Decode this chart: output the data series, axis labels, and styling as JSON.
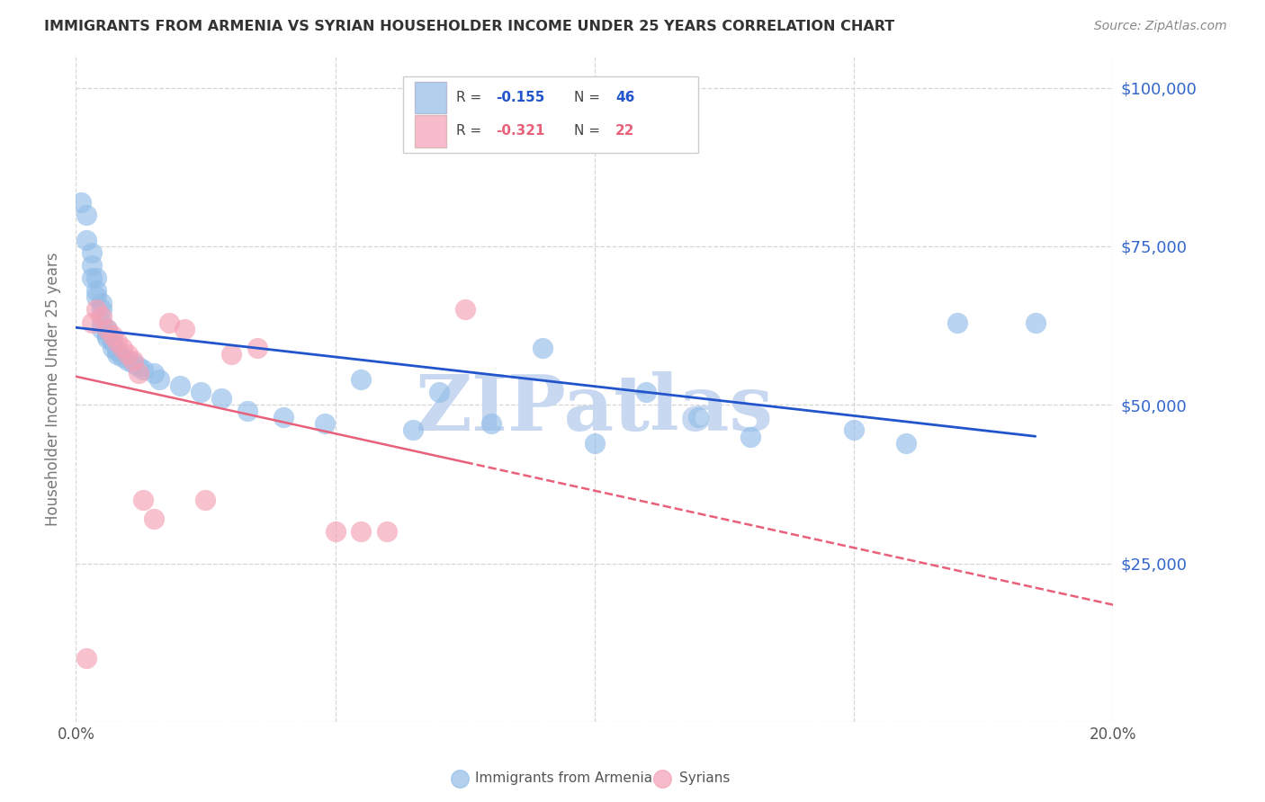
{
  "title": "IMMIGRANTS FROM ARMENIA VS SYRIAN HOUSEHOLDER INCOME UNDER 25 YEARS CORRELATION CHART",
  "source": "Source: ZipAtlas.com",
  "ylabel": "Householder Income Under 25 years",
  "xlim": [
    0.0,
    0.2
  ],
  "ylim": [
    0,
    105000
  ],
  "yticks": [
    0,
    25000,
    50000,
    75000,
    100000
  ],
  "ytick_labels": [
    "",
    "$25,000",
    "$50,000",
    "$75,000",
    "$100,000"
  ],
  "xticks": [
    0.0,
    0.05,
    0.1,
    0.15,
    0.2
  ],
  "xtick_labels": [
    "0.0%",
    "",
    "",
    "",
    "20.0%"
  ],
  "armenia_color": "#92BDE8",
  "syria_color": "#F4A0B5",
  "armenia_line_color": "#2255CC",
  "syria_line_color": "#E8607A",
  "background_color": "#ffffff",
  "grid_color": "#cccccc",
  "title_color": "#333333",
  "right_tick_color": "#3366CC",
  "armenia_x": [
    0.001,
    0.002,
    0.002,
    0.003,
    0.003,
    0.003,
    0.004,
    0.004,
    0.004,
    0.005,
    0.005,
    0.005,
    0.005,
    0.006,
    0.006,
    0.006,
    0.007,
    0.007,
    0.008,
    0.008,
    0.009,
    0.01,
    0.011,
    0.012,
    0.013,
    0.015,
    0.016,
    0.02,
    0.024,
    0.028,
    0.033,
    0.04,
    0.048,
    0.055,
    0.065,
    0.07,
    0.08,
    0.09,
    0.1,
    0.11,
    0.12,
    0.13,
    0.15,
    0.16,
    0.17,
    0.185
  ],
  "armenia_y": [
    82000,
    80000,
    76000,
    74000,
    72000,
    70000,
    70000,
    68000,
    67000,
    66000,
    65000,
    63000,
    62000,
    62000,
    61000,
    60500,
    60000,
    59000,
    58500,
    58000,
    57500,
    57000,
    56500,
    56000,
    55500,
    55000,
    54000,
    53000,
    52000,
    51000,
    49000,
    48000,
    47000,
    54000,
    46000,
    52000,
    47000,
    59000,
    44000,
    52000,
    48000,
    45000,
    46000,
    44000,
    63000,
    63000
  ],
  "syria_x": [
    0.002,
    0.003,
    0.004,
    0.005,
    0.006,
    0.007,
    0.008,
    0.009,
    0.01,
    0.011,
    0.012,
    0.013,
    0.015,
    0.018,
    0.021,
    0.025,
    0.03,
    0.035,
    0.05,
    0.055,
    0.06,
    0.075
  ],
  "syria_y": [
    10000,
    63000,
    65000,
    64000,
    62000,
    61000,
    60000,
    59000,
    58000,
    57000,
    55000,
    35000,
    32000,
    63000,
    62000,
    35000,
    58000,
    59000,
    30000,
    30000,
    30000,
    65000
  ],
  "watermark": "ZIPatlas",
  "watermark_color": "#C8D8F0",
  "legend_bottom_left": "Immigrants from Armenia",
  "legend_bottom_right": "Syrians"
}
